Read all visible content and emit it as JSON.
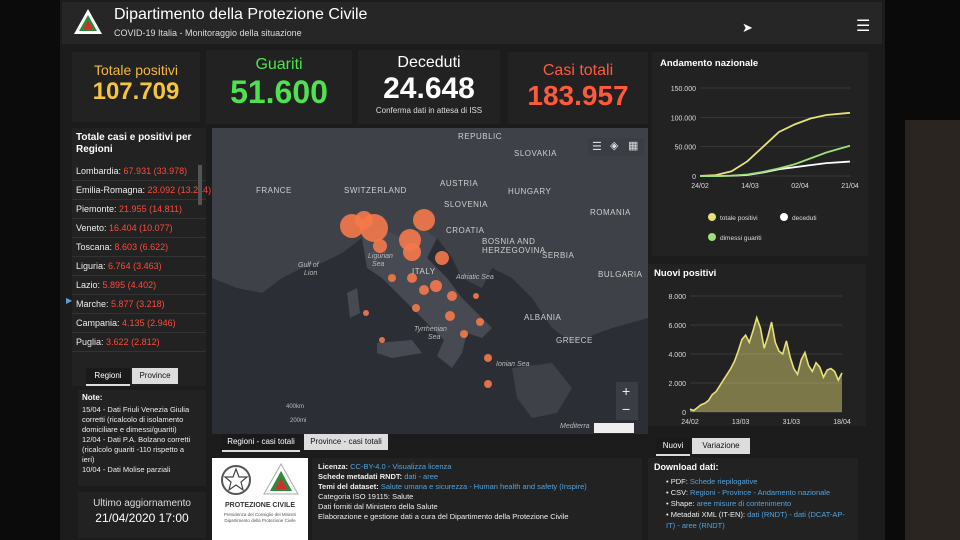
{
  "header": {
    "title": "Dipartimento della Protezione Civile",
    "subtitle": "COVID-19 Italia - Monitoraggio della situazione"
  },
  "kpis": {
    "positivi": {
      "label": "Totale positivi",
      "value": "107.709"
    },
    "guariti": {
      "label": "Guariti",
      "value": "51.600"
    },
    "deceduti": {
      "label": "Deceduti",
      "value": "24.648",
      "note": "Conferma dati in attesa di ISS"
    },
    "casi": {
      "label": "Casi totali",
      "value": "183.957"
    }
  },
  "regions_panel": {
    "title": "Totale casi e positivi per Regioni",
    "items": [
      {
        "name": "Lombardia:",
        "total": "67.931",
        "positive": "(33.978)"
      },
      {
        "name": "Emilia-Romagna:",
        "total": "23.092",
        "positive": "(13.244)"
      },
      {
        "name": "Piemonte:",
        "total": "21.955",
        "positive": "(14.811)"
      },
      {
        "name": "Veneto:",
        "total": "16.404",
        "positive": "(10.077)"
      },
      {
        "name": "Toscana:",
        "total": "8.603",
        "positive": "(6.622)"
      },
      {
        "name": "Liguria:",
        "total": "6.764",
        "positive": "(3.463)"
      },
      {
        "name": "Lazio:",
        "total": "5.895",
        "positive": "(4.402)"
      },
      {
        "name": "Marche:",
        "total": "5.877",
        "positive": "(3.218)"
      },
      {
        "name": "Campania:",
        "total": "4.135",
        "positive": "(2.946)"
      },
      {
        "name": "Puglia:",
        "total": "3.622",
        "positive": "(2.812)"
      }
    ],
    "tabs": [
      "Regioni",
      "Province"
    ]
  },
  "notes": {
    "title": "Note:",
    "lines": [
      "15/04 - Dati Friuli Venezia Giulia",
      "corretti (ricalcolo di isolamento",
      "domiciliare e dimessi/guariti)",
      "12/04 - Dati P.A. Bolzano corretti",
      "(ricalcolo guariti -110 rispetto a",
      "ieri)",
      "10/04 - Dati Molise parziali"
    ]
  },
  "update": {
    "label": "Ultimo aggiornamento",
    "value": "21/04/2020 17:00"
  },
  "map": {
    "countries": [
      "FRANCE",
      "SWITZERLAND",
      "AUSTRIA",
      "HUNGARY",
      "SLOVAKIA",
      "SLOVENIA",
      "CROATIA",
      "BOSNIA AND",
      "HERZEGOVINA",
      "SERBIA",
      "ROMANIA",
      "BULGARIA",
      "ITALY",
      "ALBANIA",
      "GREECE",
      "REPUBLIC"
    ],
    "seas": [
      "Gulf of",
      "Lion",
      "Ligurian",
      "Sea",
      "Adriatic Sea",
      "Tyrrhenian",
      "Sea",
      "Ionian Sea",
      "Mediterra"
    ],
    "scale_km": "400km",
    "scale_mi": "200mi",
    "zoom_in": "+",
    "zoom_out": "−",
    "tabs": [
      "Regioni - casi totali",
      "Province - casi totali"
    ]
  },
  "chart1": {
    "title": "Andamento nazionale",
    "legend": [
      "totale positivi",
      "deceduti",
      "dimessi guariti"
    ]
  },
  "chart2": {
    "title": "Nuovi positivi",
    "tabs": [
      "Nuovi",
      "Variazione"
    ]
  },
  "chart_data": [
    {
      "type": "line",
      "title": "Andamento nazionale",
      "xlabel": "",
      "ylabel": "",
      "x_ticks": [
        "24/02",
        "14/03",
        "02/04",
        "21/04"
      ],
      "y_ticks": [
        "0",
        "50.000",
        "100.000",
        "150.000"
      ],
      "ylim": [
        0,
        150000
      ],
      "x": [
        0,
        6,
        12,
        18,
        24,
        30,
        36,
        42,
        48,
        57
      ],
      "series": [
        {
          "name": "totale positivi",
          "color": "#e8e07a",
          "values": [
            200,
            1500,
            8000,
            25000,
            50000,
            75000,
            88000,
            98000,
            104000,
            107709
          ]
        },
        {
          "name": "deceduti",
          "color": "#ffffff",
          "values": [
            10,
            60,
            400,
            1800,
            6000,
            11500,
            15000,
            18500,
            22000,
            24648
          ]
        },
        {
          "name": "dimessi guariti",
          "color": "#9be07a",
          "values": [
            0,
            50,
            600,
            2500,
            7000,
            13000,
            20000,
            30000,
            40000,
            51600
          ]
        }
      ],
      "grid": true,
      "legend": "bottom"
    },
    {
      "type": "area",
      "title": "Nuovi positivi",
      "xlabel": "",
      "ylabel": "",
      "x_ticks": [
        "24/02",
        "13/03",
        "31/03",
        "18/04"
      ],
      "y_ticks": [
        "0",
        "2.000",
        "4.000",
        "6.000",
        "8.000"
      ],
      "ylim": [
        0,
        8000
      ],
      "color": "#e8e07a",
      "values": [
        200,
        100,
        300,
        500,
        600,
        800,
        1200,
        1400,
        1800,
        2200,
        2600,
        3000,
        3500,
        4200,
        5000,
        5300,
        4800,
        5600,
        6500,
        5800,
        4400,
        5200,
        6200,
        4800,
        4200,
        4000,
        4900,
        3800,
        3000,
        2600,
        3600,
        4100,
        3200,
        2800,
        3400,
        3100,
        2400,
        2900,
        3000,
        2800,
        2200,
        2700
      ]
    }
  ],
  "footer": {
    "logo_lines": [
      "PROTEZIONE CIVILE",
      "Presidenza del Consiglio dei Ministri",
      "Dipartimento della Protezione Civile"
    ],
    "license": {
      "licenza_label": "Licenza:",
      "licenza_val": "CC-BY-4.0 -",
      "licenza_link": "Visualizza licenza",
      "schede_label": "Schede metadati RNDT:",
      "schede_val": "dati - aree",
      "temi_label": "Temi del dataset:",
      "temi_val": "Salute umana e sicurezza - Human health and safety (Inspire)",
      "categoria": "Categoria ISO 19115: Salute",
      "fonti": "Dati forniti dal Ministero della Salute",
      "elaborazione": "Elaborazione e gestione dati a cura del Dipartimento della Protezione Civile"
    },
    "download": {
      "title": "Download dati:",
      "pdf_label": "PDF:",
      "pdf_link": "Schede riepilogative",
      "csv_label": "CSV:",
      "csv_link": "Regioni - Province - Andamento nazionale",
      "shape_label": "Shape:",
      "shape_link": "aree misure di contenimento",
      "xml_label": "Metadati XML (IT-EN):",
      "xml_link": "dati (RNDT) - dati (DCAT-AP-IT) - aree (RNDT)"
    }
  }
}
